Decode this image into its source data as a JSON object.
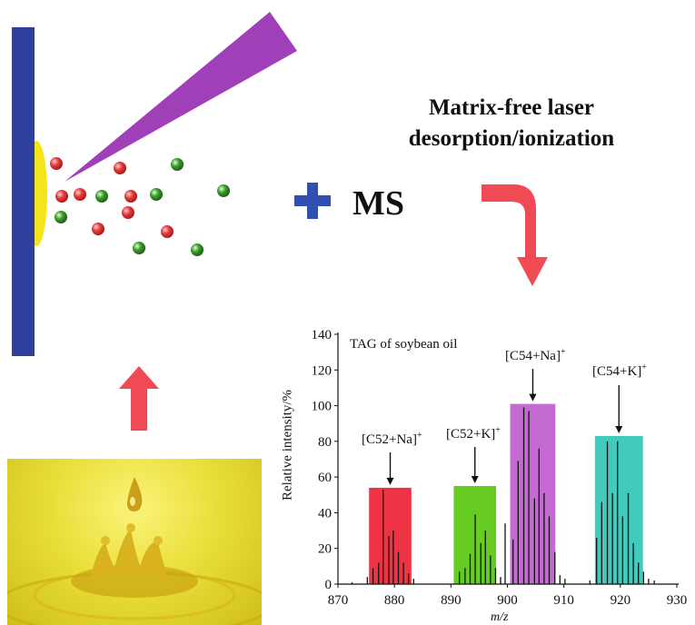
{
  "heading": {
    "line1": "Matrix-free laser",
    "line2": "desorption/ionization"
  },
  "plus_label": "MS",
  "colors": {
    "plate": "#2e3f9e",
    "sample_spot": "#f3e41c",
    "laser": "#a040b8",
    "ion_red": "#e53a3a",
    "ion_green": "#3a9a2a",
    "plus": "#3050b0",
    "arrow": "#f04a55",
    "bar_c52na": "#ee3345",
    "bar_c52k": "#66cc22",
    "bar_c54na": "#c46ad2",
    "bar_c54k": "#40cbbd"
  },
  "icons": [
    "sample-plate-icon",
    "laser-beam-icon",
    "ion-red-icon",
    "ion-green-icon",
    "plus-icon",
    "curved-arrow-icon",
    "up-arrow-icon",
    "oil-droplet-photo"
  ],
  "chart_data": {
    "type": "bar",
    "title": "TAG of soybean oil",
    "xlabel": "m/z",
    "ylabel": "Relative intensity/%",
    "xlim": [
      870,
      930
    ],
    "ylim": [
      0,
      140
    ],
    "xticks": [
      870,
      880,
      890,
      900,
      910,
      920,
      930
    ],
    "yticks": [
      0,
      20,
      40,
      60,
      80,
      100,
      120,
      140
    ],
    "groups": [
      {
        "label": "[C52+Na]",
        "sup": "+",
        "color": "#ee3345",
        "x_range": [
          875.5,
          883.0
        ],
        "value": 54
      },
      {
        "label": "[C52+K]",
        "sup": "+",
        "color": "#66cc22",
        "x_range": [
          890.5,
          898.0
        ],
        "value": 55
      },
      {
        "label": "[C54+Na]",
        "sup": "+",
        "color": "#c46ad2",
        "x_range": [
          900.5,
          908.5
        ],
        "value": 101
      },
      {
        "label": "[C54+K]",
        "sup": "+",
        "color": "#40cbbd",
        "x_range": [
          915.5,
          924.0
        ],
        "value": 83
      }
    ],
    "peaks": [
      {
        "mz": 872.5,
        "i": 1
      },
      {
        "mz": 875.2,
        "i": 4
      },
      {
        "mz": 876.2,
        "i": 9
      },
      {
        "mz": 877.2,
        "i": 12
      },
      {
        "mz": 878.0,
        "i": 53
      },
      {
        "mz": 879.0,
        "i": 27
      },
      {
        "mz": 879.8,
        "i": 30
      },
      {
        "mz": 880.7,
        "i": 18
      },
      {
        "mz": 881.6,
        "i": 12
      },
      {
        "mz": 882.5,
        "i": 6
      },
      {
        "mz": 883.4,
        "i": 3
      },
      {
        "mz": 891.5,
        "i": 7
      },
      {
        "mz": 892.5,
        "i": 9
      },
      {
        "mz": 893.4,
        "i": 17
      },
      {
        "mz": 894.3,
        "i": 39
      },
      {
        "mz": 895.3,
        "i": 23
      },
      {
        "mz": 896.1,
        "i": 30
      },
      {
        "mz": 897.0,
        "i": 16
      },
      {
        "mz": 897.9,
        "i": 9
      },
      {
        "mz": 898.8,
        "i": 4
      },
      {
        "mz": 899.6,
        "i": 34
      },
      {
        "mz": 901.0,
        "i": 25
      },
      {
        "mz": 901.9,
        "i": 69
      },
      {
        "mz": 902.9,
        "i": 99
      },
      {
        "mz": 903.8,
        "i": 97
      },
      {
        "mz": 904.8,
        "i": 48
      },
      {
        "mz": 905.6,
        "i": 76
      },
      {
        "mz": 906.5,
        "i": 51
      },
      {
        "mz": 907.4,
        "i": 38
      },
      {
        "mz": 908.4,
        "i": 18
      },
      {
        "mz": 909.3,
        "i": 5
      },
      {
        "mz": 910.2,
        "i": 3
      },
      {
        "mz": 914.6,
        "i": 2
      },
      {
        "mz": 915.8,
        "i": 26
      },
      {
        "mz": 916.7,
        "i": 46
      },
      {
        "mz": 917.7,
        "i": 80
      },
      {
        "mz": 918.6,
        "i": 51
      },
      {
        "mz": 919.5,
        "i": 80
      },
      {
        "mz": 920.4,
        "i": 38
      },
      {
        "mz": 921.4,
        "i": 51
      },
      {
        "mz": 922.3,
        "i": 23
      },
      {
        "mz": 923.2,
        "i": 12
      },
      {
        "mz": 924.1,
        "i": 7
      },
      {
        "mz": 925.0,
        "i": 3
      },
      {
        "mz": 926.0,
        "i": 2
      }
    ]
  }
}
